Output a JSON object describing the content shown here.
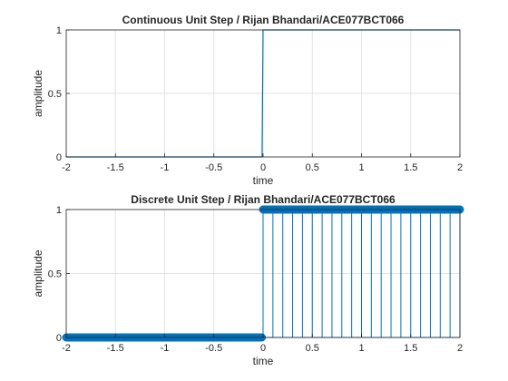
{
  "colors": {
    "series": "#0072BD",
    "grid": "#e3e3e3",
    "axis": "#262626"
  },
  "chart_data": [
    {
      "type": "line",
      "title": "Continuous Unit Step / Rijan Bhandari/ACE077BCT066",
      "xlabel": "time",
      "ylabel": "amplitude",
      "xlim": [
        -2,
        2
      ],
      "ylim": [
        0,
        1
      ],
      "xticks": [
        -2,
        -1.5,
        -1,
        -0.5,
        0,
        0.5,
        1,
        1.5,
        2
      ],
      "xtick_labels": [
        "-2",
        "-1.5",
        "-1",
        "-0.5",
        "0",
        "0.5",
        "1",
        "1.5",
        "2"
      ],
      "yticks": [
        0,
        0.5,
        1
      ],
      "ytick_labels": [
        "0",
        "0.5",
        "1"
      ],
      "grid": true,
      "series": [
        {
          "x": [
            -2,
            -0.01,
            0,
            2
          ],
          "y": [
            0,
            0,
            1,
            1
          ]
        }
      ]
    },
    {
      "type": "stem",
      "title": "Discrete Unit Step / Rijan Bhandari/ACE077BCT066",
      "xlabel": "time",
      "ylabel": "amplitude",
      "xlim": [
        -2,
        2
      ],
      "ylim": [
        0,
        1
      ],
      "xticks": [
        -2,
        -1.5,
        -1,
        -0.5,
        0,
        0.5,
        1,
        1.5,
        2
      ],
      "xtick_labels": [
        "-2",
        "-1.5",
        "-1",
        "-0.5",
        "0",
        "0.5",
        "1",
        "1.5",
        "2"
      ],
      "yticks": [
        0,
        0.5,
        1
      ],
      "ytick_labels": [
        "0",
        "0.5",
        "1"
      ],
      "grid": true,
      "series": [
        {
          "x_start": -2,
          "x_end": 2,
          "x_step": 0.1,
          "rule": "y = 1 for x >= 0, else 0"
        }
      ]
    }
  ]
}
